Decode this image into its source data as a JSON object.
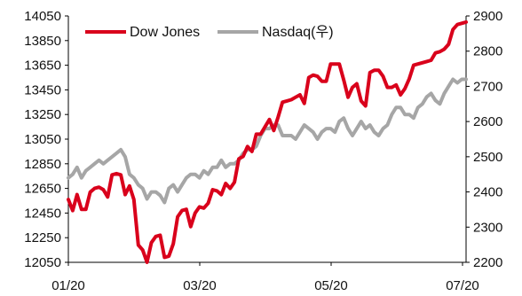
{
  "chart_data": {
    "type": "line",
    "title": "",
    "x_tick_labels": [
      "01/20",
      "03/20",
      "05/20",
      "07/20"
    ],
    "y_left": {
      "ylim": [
        12050,
        14050
      ],
      "ticks": [
        12050,
        12250,
        12450,
        12650,
        12850,
        13050,
        13250,
        13450,
        13650,
        13850,
        14050
      ]
    },
    "y_right": {
      "ylim": [
        2200,
        2900
      ],
      "ticks": [
        2200,
        2300,
        2400,
        2500,
        2600,
        2700,
        2800,
        2900
      ]
    },
    "grid": false,
    "legend_position": "top-left",
    "series": [
      {
        "name": "Dow Jones",
        "axis": "left",
        "color": "#d9001b",
        "x": [
          0,
          2,
          4,
          6,
          8,
          10,
          12,
          14,
          16,
          18,
          20,
          22,
          24,
          26,
          28,
          30,
          32,
          34,
          36,
          38,
          40,
          42,
          44,
          46,
          48,
          50,
          52,
          54,
          56,
          58,
          60,
          62,
          64,
          66,
          68,
          70,
          72,
          74,
          76,
          78,
          80,
          82,
          84,
          86,
          88,
          90,
          92,
          94,
          96,
          98,
          100,
          102,
          104,
          106,
          108,
          110,
          112,
          114,
          116,
          118,
          120,
          122,
          124,
          126,
          128,
          130,
          132,
          134,
          136,
          138,
          140,
          142,
          144,
          146,
          148,
          150,
          152,
          154,
          156,
          158,
          160,
          162,
          164,
          166,
          168,
          170,
          172,
          174,
          176,
          178,
          180,
          182
        ],
        "values": [
          12560,
          12470,
          12600,
          12480,
          12480,
          12620,
          12650,
          12660,
          12640,
          12580,
          12760,
          12770,
          12760,
          12600,
          12670,
          12560,
          12190,
          12150,
          12050,
          12210,
          12260,
          12270,
          12090,
          12100,
          12200,
          12420,
          12470,
          12480,
          12340,
          12450,
          12500,
          12490,
          12530,
          12640,
          12630,
          12600,
          12690,
          12650,
          12700,
          12890,
          12910,
          12990,
          12950,
          13090,
          13090,
          13150,
          13210,
          13120,
          13230,
          13350,
          13360,
          13370,
          13390,
          13410,
          13340,
          13550,
          13570,
          13560,
          13520,
          13520,
          13660,
          13660,
          13660,
          13530,
          13390,
          13470,
          13500,
          13360,
          13320,
          13590,
          13610,
          13610,
          13560,
          13470,
          13470,
          13490,
          13410,
          13460,
          13540,
          13650,
          13660,
          13670,
          13680,
          13690,
          13750,
          13760,
          13780,
          13820,
          13940,
          13980,
          13990,
          14000
        ]
      },
      {
        "name": "Nasdaq(우)",
        "axis": "right",
        "color": "#a6a6a6",
        "x": [
          0,
          2,
          4,
          6,
          8,
          10,
          12,
          14,
          16,
          18,
          20,
          22,
          24,
          26,
          28,
          30,
          32,
          34,
          36,
          38,
          40,
          42,
          44,
          46,
          48,
          50,
          52,
          54,
          56,
          58,
          60,
          62,
          64,
          66,
          68,
          70,
          72,
          74,
          76,
          78,
          80,
          82,
          84,
          86,
          88,
          90,
          92,
          94,
          96,
          98,
          100,
          102,
          104,
          106,
          108,
          110,
          112,
          114,
          116,
          118,
          120,
          122,
          124,
          126,
          128,
          130,
          132,
          134,
          136,
          138,
          140,
          142,
          144,
          146,
          148,
          150,
          152,
          154,
          156,
          158,
          160,
          162,
          164,
          166,
          168,
          170,
          172,
          174,
          176,
          178,
          180,
          182
        ],
        "values": [
          2440,
          2450,
          2470,
          2440,
          2460,
          2470,
          2480,
          2490,
          2480,
          2490,
          2500,
          2510,
          2520,
          2500,
          2450,
          2440,
          2420,
          2410,
          2380,
          2400,
          2400,
          2390,
          2370,
          2410,
          2420,
          2400,
          2420,
          2440,
          2450,
          2450,
          2440,
          2460,
          2450,
          2470,
          2470,
          2490,
          2470,
          2480,
          2480,
          2490,
          2510,
          2520,
          2520,
          2530,
          2560,
          2580,
          2580,
          2590,
          2590,
          2560,
          2560,
          2560,
          2550,
          2570,
          2590,
          2580,
          2570,
          2550,
          2570,
          2580,
          2580,
          2570,
          2600,
          2610,
          2580,
          2560,
          2580,
          2600,
          2580,
          2590,
          2570,
          2560,
          2580,
          2590,
          2620,
          2640,
          2640,
          2620,
          2620,
          2610,
          2640,
          2650,
          2670,
          2680,
          2660,
          2650,
          2680,
          2700,
          2720,
          2710,
          2720,
          2720
        ]
      }
    ]
  }
}
